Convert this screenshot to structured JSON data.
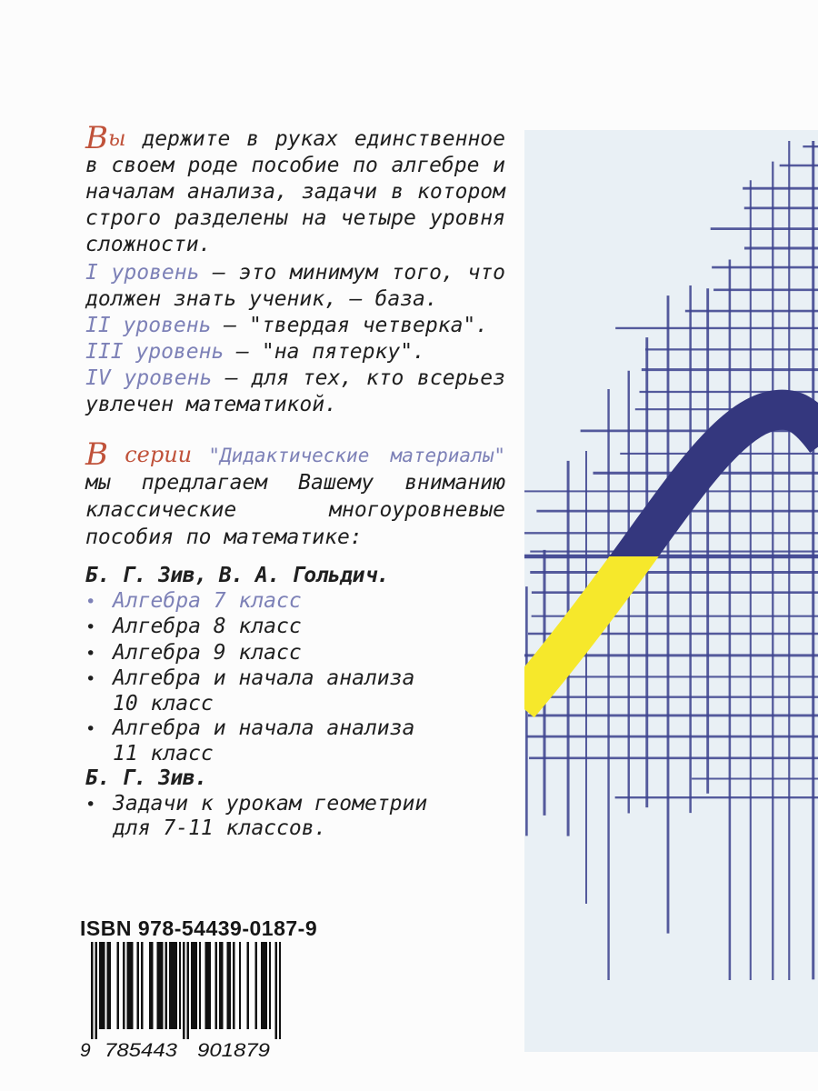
{
  "intro": {
    "lead_initial": "В",
    "lead_rest": "ы",
    "body": " держите в руках единственное в своем роде пособие по алгебре и началам анализа, задачи в котором строго разделены на четыре уровня сложности."
  },
  "levels": [
    {
      "label": "I уровень",
      "text": " — это минимум того, что должен знать ученик, — база."
    },
    {
      "label": "II уровень",
      "text": " — \"твердая четверка\"."
    },
    {
      "label": "III уровень",
      "text": " — \"на пятерку\"."
    },
    {
      "label": "IV уровень",
      "text": " — для тех, кто всерьез увлечен математикой."
    }
  ],
  "series": {
    "lead_initial": "В",
    "lead_rest": " серии ",
    "quote": "\"Дидактические материалы\"",
    "body": " мы предлагаем Вашему вниманию классические многоуровневые пособия по математике:"
  },
  "books": {
    "bullet": "•",
    "author_group_1": "Б. Г. Зив, В. А. Гольдич.",
    "items_1": [
      {
        "lines": [
          "Алгебра 7 класс"
        ],
        "highlight": true
      },
      {
        "lines": [
          "Алгебра 8 класс"
        ]
      },
      {
        "lines": [
          "Алгебра 9 класс"
        ]
      },
      {
        "lines": [
          "Алгебра и начала анализа",
          "10 класс"
        ]
      },
      {
        "lines": [
          "Алгебра и начала анализа",
          "11 класс"
        ]
      }
    ],
    "author_group_2": "Б. Г. Зив.",
    "items_2": [
      {
        "lines": [
          "Задачи к урокам геометрии",
          "для 7-11 классов."
        ]
      }
    ]
  },
  "isbn": {
    "label": "ISBN 978-54439-0187-9",
    "digits": "9785443901879",
    "display_groups": [
      "9",
      "785443",
      "901879"
    ]
  },
  "artwork": {
    "name": "hand-drawn-graph-grid-with-sine-curve",
    "panel_color": "#e9f0f5",
    "grid_color": "#3f4490",
    "curve_color": "#34377e",
    "curve_accent_color": "#f6e82b"
  },
  "colors": {
    "text": "#1f1f1f",
    "accent_red": "#c0523a",
    "accent_blue": "#7d81b7"
  }
}
